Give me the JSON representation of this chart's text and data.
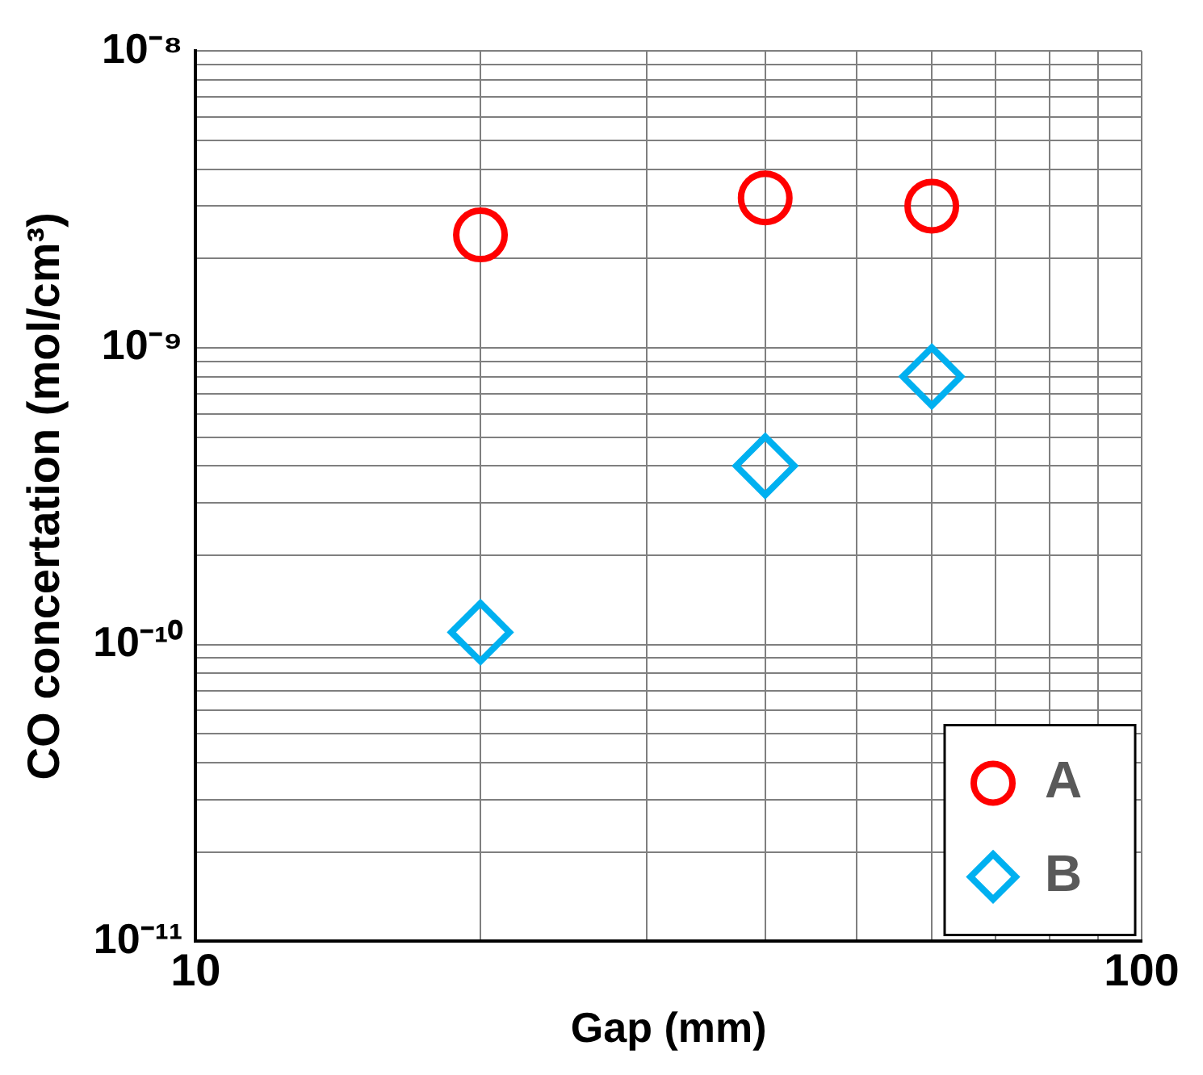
{
  "chart_data": {
    "type": "scatter",
    "xlabel": "Gap (mm)",
    "ylabel": "CO concertation (mol/cm³)",
    "log": "xy",
    "grid": true,
    "legend": "bottom right",
    "xlim": [
      10,
      100
    ],
    "xticks": [
      10,
      {
        "value": 20,
        "label": null
      },
      {
        "value": 30,
        "label": null
      },
      {
        "value": 40,
        "label": null
      },
      {
        "value": 50,
        "label": null
      },
      {
        "value": 60,
        "label": null
      },
      {
        "value": 70,
        "label": null
      },
      {
        "value": 80,
        "label": null
      },
      {
        "value": 90,
        "label": null
      },
      100
    ],
    "ylim": [
      1e-11,
      1e-08
    ],
    "yticks": [
      {
        "value": 1e-11,
        "label": "10⁻¹¹"
      },
      {
        "value": 2e-11,
        "label": null
      },
      {
        "value": 3e-11,
        "label": null
      },
      {
        "value": 4e-11,
        "label": null
      },
      {
        "value": 5e-11,
        "label": null
      },
      {
        "value": 6e-11,
        "label": null
      },
      {
        "value": 7e-11,
        "label": null
      },
      {
        "value": 8e-11,
        "label": null
      },
      {
        "value": 9e-11,
        "label": null
      },
      {
        "value": 1e-10,
        "label": "10⁻¹⁰"
      },
      {
        "value": 2e-10,
        "label": null
      },
      {
        "value": 3e-10,
        "label": null
      },
      {
        "value": 4e-10,
        "label": null
      },
      {
        "value": 5e-10,
        "label": null
      },
      {
        "value": 6e-10,
        "label": null
      },
      {
        "value": 7e-10,
        "label": null
      },
      {
        "value": 8e-10,
        "label": null
      },
      {
        "value": 9e-10,
        "label": null
      },
      {
        "value": 1e-09,
        "label": "10⁻⁹"
      },
      {
        "value": 2e-09,
        "label": null
      },
      {
        "value": 3e-09,
        "label": null
      },
      {
        "value": 4e-09,
        "label": null
      },
      {
        "value": 5e-09,
        "label": null
      },
      {
        "value": 6e-09,
        "label": null
      },
      {
        "value": 7e-09,
        "label": null
      },
      {
        "value": 8e-09,
        "label": null
      },
      {
        "value": 9e-09,
        "label": null
      },
      {
        "value": 1e-08,
        "label": "10⁻⁸"
      }
    ],
    "series": [
      {
        "name": "A",
        "color": "#ff0000",
        "marker": "circle",
        "x": [
          20,
          40,
          60
        ],
        "values": [
          2.4e-09,
          3.2e-09,
          3e-09
        ]
      },
      {
        "name": "B",
        "color": "#00b0f0",
        "marker": "diamond",
        "x": [
          20,
          40,
          60
        ],
        "values": [
          1.1e-10,
          4e-10,
          8e-10
        ]
      }
    ]
  }
}
